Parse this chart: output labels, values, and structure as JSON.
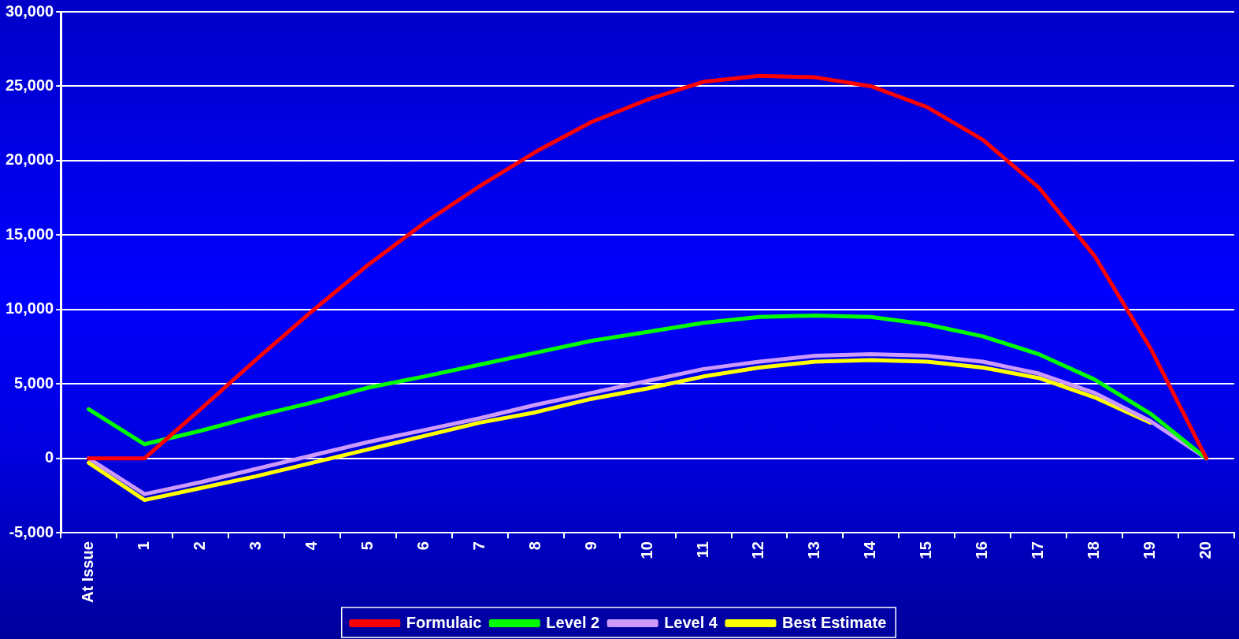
{
  "chart_data": {
    "type": "line",
    "categories": [
      "At Issue",
      "1",
      "2",
      "3",
      "4",
      "5",
      "6",
      "7",
      "8",
      "9",
      "10",
      "11",
      "12",
      "13",
      "14",
      "15",
      "16",
      "17",
      "18",
      "19",
      "20"
    ],
    "series": [
      {
        "name": "Formulaic",
        "color": "#ff0000",
        "values": [
          0,
          0,
          3300,
          6650,
          9900,
          13000,
          15800,
          18300,
          20600,
          22600,
          24100,
          25300,
          25700,
          25600,
          25000,
          23600,
          21400,
          18200,
          13600,
          7400,
          0
        ]
      },
      {
        "name": "Level 2",
        "color": "#00ff00",
        "values": [
          3300,
          950,
          1850,
          2850,
          3750,
          4750,
          5500,
          6300,
          7100,
          7900,
          8500,
          9100,
          9500,
          9600,
          9500,
          9000,
          8200,
          7000,
          5300,
          3000,
          0
        ]
      },
      {
        "name": "Level 4",
        "color": "#cc99ff",
        "values": [
          0,
          -2400,
          -1600,
          -700,
          200,
          1100,
          1900,
          2700,
          3600,
          4400,
          5200,
          6000,
          6500,
          6900,
          7000,
          6900,
          6500,
          5700,
          4400,
          2500,
          0
        ]
      },
      {
        "name": "Best Estimate",
        "color": "#ffff00",
        "values": [
          -300,
          -2800,
          -2000,
          -1200,
          -300,
          600,
          1500,
          2400,
          3100,
          4000,
          4700,
          5500,
          6100,
          6500,
          6600,
          6500,
          6100,
          5400,
          4100,
          2400,
          null
        ]
      }
    ],
    "ylim": [
      -5000,
      30000
    ],
    "yticks": [
      {
        "value": -5000,
        "label": "-5,000"
      },
      0,
      {
        "value": 5000,
        "label": "5,000"
      },
      {
        "value": 10000,
        "label": "10,000"
      },
      {
        "value": 15000,
        "label": "15,000"
      },
      {
        "value": 20000,
        "label": "20,000"
      },
      {
        "value": 25000,
        "label": "25,000"
      },
      {
        "value": 30000,
        "label": "30,000"
      }
    ],
    "grid": "y",
    "legend": "bottom",
    "marker": "none",
    "line_style": "solid"
  }
}
